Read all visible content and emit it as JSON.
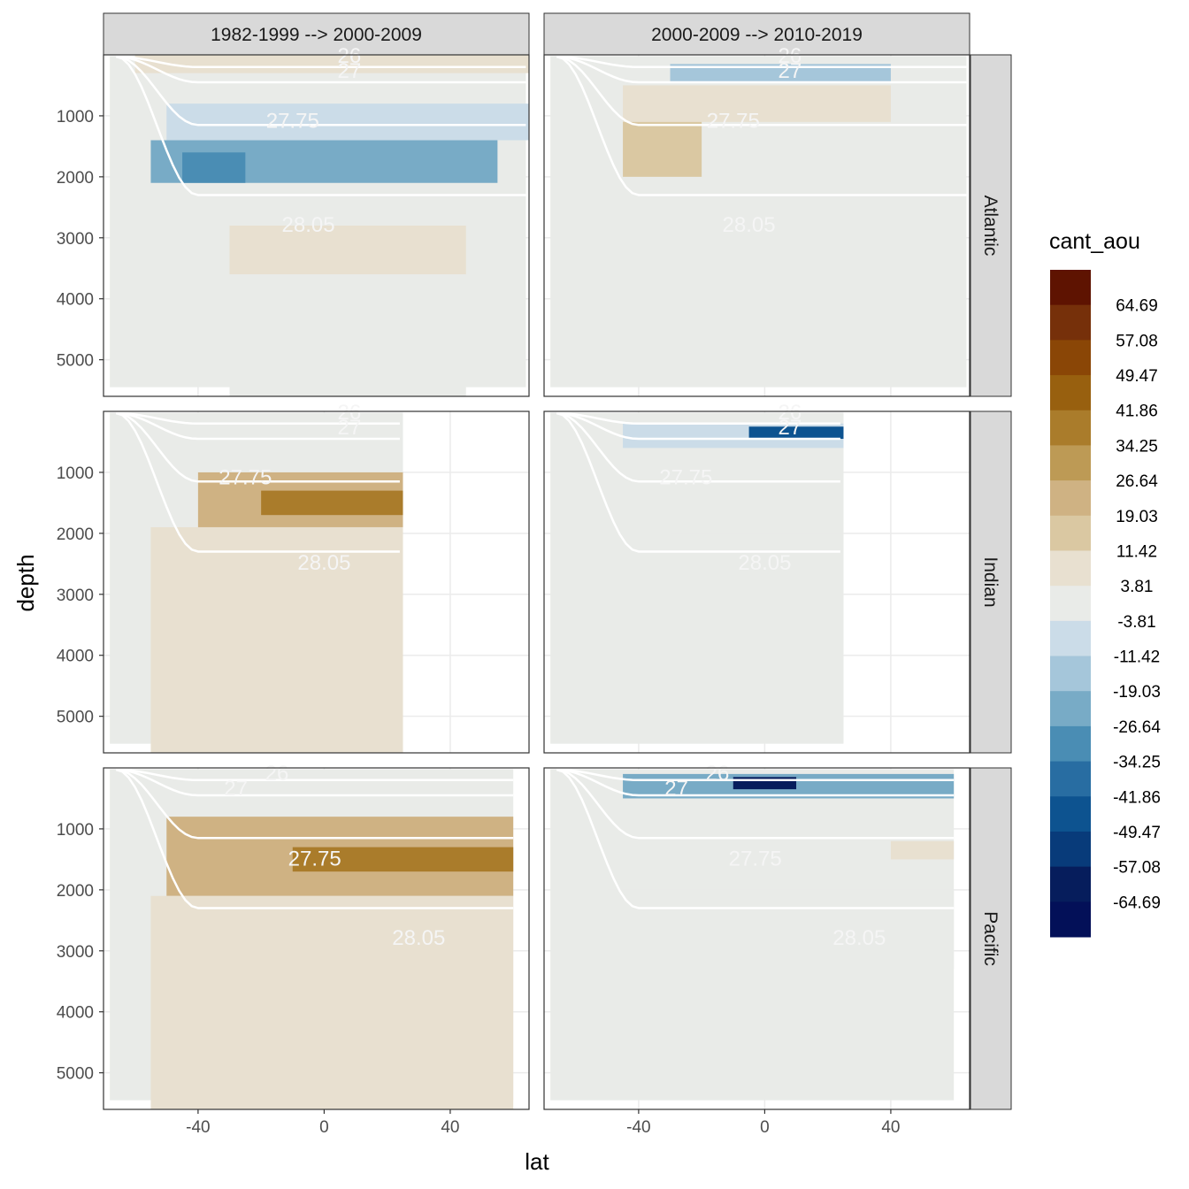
{
  "chart_data": {
    "type": "heatmap",
    "facet_columns": [
      "1982-1999 --> 2000-2009",
      "2000-2009 --> 2010-2019"
    ],
    "facet_rows": [
      "Atlantic",
      "Indian",
      "Pacific"
    ],
    "xlabel": "lat",
    "ylabel": "depth",
    "xlim": [
      -70,
      65
    ],
    "ylim": [
      0,
      5600
    ],
    "y_reversed": true,
    "x_ticks": [
      -40,
      0,
      40
    ],
    "y_ticks": [
      1000,
      2000,
      3000,
      4000,
      5000
    ],
    "grid": true,
    "legend": {
      "title": "cant_aou",
      "position": "right",
      "breaks": [
        "64.69",
        "57.08",
        "49.47",
        "41.86",
        "34.25",
        "26.64",
        "19.03",
        "11.42",
        "3.81",
        "-3.81",
        "-11.42",
        "-19.03",
        "-26.64",
        "-34.25",
        "-41.86",
        "-49.47",
        "-57.08",
        "-64.69"
      ],
      "colors": [
        "#5e1301",
        "#76300a",
        "#8a4606",
        "#98600f",
        "#aa7c2b",
        "#bd9a55",
        "#cfb283",
        "#dac8a2",
        "#e8e0d0",
        "#e9ebe8",
        "#cbdce8",
        "#a5c6da",
        "#78abc6",
        "#4a8db4",
        "#286da2",
        "#0d5390",
        "#083b7a",
        "#061d5c",
        "#031058"
      ]
    },
    "contour_labels": [
      "26",
      "27",
      "27.75",
      "28.05"
    ],
    "isopycnal_depths": {
      "26": 200,
      "27": 450,
      "27.75": 1150,
      "28.05": 2300
    },
    "panels": [
      {
        "basin": "Atlantic",
        "period": "1982-1999 --> 2000-2009",
        "contour_label_positions": [
          {
            "label": "26",
            "lat": 8,
            "depth": 130
          },
          {
            "label": "27",
            "lat": 8,
            "depth": 380
          },
          {
            "label": "27.75",
            "lat": -10,
            "depth": 1200
          },
          {
            "label": "28.05",
            "lat": -5,
            "depth": 2900
          }
        ],
        "regions": [
          {
            "lat": [
              -55,
              55
            ],
            "depth": [
              1400,
              2100
            ],
            "value": -26.64
          },
          {
            "lat": [
              -45,
              -25
            ],
            "depth": [
              1600,
              2100
            ],
            "value": -34.25
          },
          {
            "lat": [
              -50,
              65
            ],
            "depth": [
              800,
              1400
            ],
            "value": -11.42
          },
          {
            "lat": [
              -60,
              65
            ],
            "depth": [
              0,
              300
            ],
            "value": 3.81
          },
          {
            "lat": [
              -30,
              45
            ],
            "depth": [
              2800,
              3600
            ],
            "value": 3.81
          },
          {
            "lat": [
              -30,
              45
            ],
            "depth": [
              3600,
              5600
            ],
            "value": -3.81
          }
        ]
      },
      {
        "basin": "Atlantic",
        "period": "2000-2009 --> 2010-2019",
        "contour_label_positions": [
          {
            "label": "26",
            "lat": 8,
            "depth": 130
          },
          {
            "label": "27",
            "lat": 8,
            "depth": 380
          },
          {
            "label": "27.75",
            "lat": -10,
            "depth": 1200
          },
          {
            "label": "28.05",
            "lat": -5,
            "depth": 2900
          }
        ],
        "regions": [
          {
            "lat": [
              -30,
              40
            ],
            "depth": [
              150,
              450
            ],
            "value": -19.03
          },
          {
            "lat": [
              -45,
              40
            ],
            "depth": [
              500,
              1100
            ],
            "value": 3.81
          },
          {
            "lat": [
              -45,
              -20
            ],
            "depth": [
              1100,
              2000
            ],
            "value": 11.42
          }
        ]
      },
      {
        "basin": "Indian",
        "period": "1982-1999 --> 2000-2009",
        "contour_label_positions": [
          {
            "label": "26",
            "lat": 8,
            "depth": 130
          },
          {
            "label": "27",
            "lat": 8,
            "depth": 380
          },
          {
            "label": "27.75",
            "lat": -25,
            "depth": 1200
          },
          {
            "label": "28.05",
            "lat": 0,
            "depth": 2600
          }
        ],
        "regions": [
          {
            "lat": [
              -40,
              25
            ],
            "depth": [
              1000,
              1900
            ],
            "value": 19.03
          },
          {
            "lat": [
              -20,
              25
            ],
            "depth": [
              1300,
              1700
            ],
            "value": 34.25
          },
          {
            "lat": [
              -55,
              25
            ],
            "depth": [
              1900,
              5600
            ],
            "value": 3.81
          }
        ]
      },
      {
        "basin": "Indian",
        "period": "2000-2009 --> 2010-2019",
        "contour_label_positions": [
          {
            "label": "26",
            "lat": 8,
            "depth": 130
          },
          {
            "label": "27",
            "lat": 8,
            "depth": 380
          },
          {
            "label": "27.75",
            "lat": -25,
            "depth": 1200
          },
          {
            "label": "28.05",
            "lat": 0,
            "depth": 2600
          }
        ],
        "regions": [
          {
            "lat": [
              -45,
              25
            ],
            "depth": [
              200,
              600
            ],
            "value": -11.42
          },
          {
            "lat": [
              -5,
              25
            ],
            "depth": [
              250,
              450
            ],
            "value": -49.47
          },
          {
            "lat": [
              -30,
              25
            ],
            "depth": [
              2000,
              2600
            ],
            "value": -3.81
          }
        ]
      },
      {
        "basin": "Pacific",
        "period": "1982-1999 --> 2000-2009",
        "contour_label_positions": [
          {
            "label": "26",
            "lat": -15,
            "depth": 200
          },
          {
            "label": "27",
            "lat": -28,
            "depth": 450
          },
          {
            "label": "27.75",
            "lat": -3,
            "depth": 1600
          },
          {
            "label": "28.05",
            "lat": 30,
            "depth": 2900
          }
        ],
        "regions": [
          {
            "lat": [
              -50,
              60
            ],
            "depth": [
              800,
              2100
            ],
            "value": 19.03
          },
          {
            "lat": [
              -10,
              60
            ],
            "depth": [
              1300,
              1700
            ],
            "value": 34.25
          },
          {
            "lat": [
              -55,
              60
            ],
            "depth": [
              2100,
              5600
            ],
            "value": 3.81
          }
        ]
      },
      {
        "basin": "Pacific",
        "period": "2000-2009 --> 2010-2019",
        "contour_label_positions": [
          {
            "label": "26",
            "lat": -15,
            "depth": 200
          },
          {
            "label": "27",
            "lat": -28,
            "depth": 450
          },
          {
            "label": "27.75",
            "lat": -3,
            "depth": 1600
          },
          {
            "label": "28.05",
            "lat": 30,
            "depth": 2900
          }
        ],
        "regions": [
          {
            "lat": [
              -45,
              60
            ],
            "depth": [
              100,
              500
            ],
            "value": -26.64
          },
          {
            "lat": [
              -10,
              10
            ],
            "depth": [
              150,
              350
            ],
            "value": -64.69
          },
          {
            "lat": [
              -50,
              60
            ],
            "depth": [
              2000,
              3300
            ],
            "value": -3.81
          },
          {
            "lat": [
              40,
              60
            ],
            "depth": [
              1200,
              1500
            ],
            "value": 3.81
          }
        ]
      }
    ]
  }
}
